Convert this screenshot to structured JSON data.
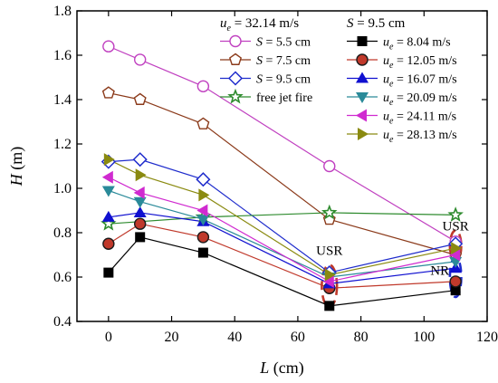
{
  "chart_data": {
    "type": "scatter",
    "xlabel": "L (cm)",
    "ylabel": "H (m)",
    "xlim": [
      -10,
      120
    ],
    "ylim": [
      0.4,
      1.8
    ],
    "xticks": [
      0,
      20,
      40,
      60,
      80,
      100,
      120
    ],
    "yticks": [
      0.4,
      0.6,
      0.8,
      1.0,
      1.2,
      1.4,
      1.6,
      1.8
    ],
    "grid": false,
    "legend_groups": [
      {
        "title": "u_e = 32.14 m/s",
        "placement": "top-center",
        "entries": [
          "S = 5.5 cm",
          "S = 7.5 cm",
          "S = 9.5 cm",
          "free jet fire"
        ]
      },
      {
        "title": "S = 9.5 cm",
        "placement": "top-right",
        "entries": [
          "u_e = 8.04 m/s",
          "u_e = 12.05 m/s",
          "u_e = 16.07 m/s",
          "u_e = 20.09 m/s",
          "u_e = 24.11 m/s",
          "u_e = 28.13 m/s"
        ]
      }
    ],
    "series": [
      {
        "name": "S = 5.5 cm",
        "marker": "circle-open",
        "color": "#c040c0",
        "x": [
          0,
          10,
          30,
          70,
          110
        ],
        "y": [
          1.64,
          1.58,
          1.46,
          1.1,
          0.76
        ]
      },
      {
        "name": "S = 7.5 cm",
        "marker": "pentagon-open",
        "color": "#8b3a1a",
        "x": [
          0,
          10,
          30,
          70,
          110
        ],
        "y": [
          1.43,
          1.4,
          1.29,
          0.86,
          0.7
        ]
      },
      {
        "name": "S = 9.5 cm",
        "marker": "diamond-open",
        "color": "#1f2ccc",
        "x": [
          0,
          10,
          30,
          70,
          110
        ],
        "y": [
          1.12,
          1.13,
          1.04,
          0.62,
          0.75
        ]
      },
      {
        "name": "free jet fire",
        "marker": "star",
        "color": "#2e8b2e",
        "x": [
          0,
          30,
          70,
          110
        ],
        "y": [
          0.84,
          0.87,
          0.89,
          0.88
        ]
      },
      {
        "name": "u_e = 8.04 m/s",
        "marker": "square",
        "color": "#000000",
        "x": [
          0,
          10,
          30,
          70,
          110
        ],
        "y": [
          0.62,
          0.78,
          0.71,
          0.47,
          0.54
        ]
      },
      {
        "name": "u_e = 12.05 m/s",
        "marker": "circle",
        "color": "#c0392b",
        "x": [
          0,
          10,
          30,
          70,
          110
        ],
        "y": [
          0.75,
          0.84,
          0.78,
          0.55,
          0.58
        ]
      },
      {
        "name": "u_e = 16.07 m/s",
        "marker": "triangle-up",
        "color": "#1010d0",
        "x": [
          0,
          10,
          30,
          70,
          110
        ],
        "y": [
          0.87,
          0.89,
          0.85,
          0.57,
          0.64
        ]
      },
      {
        "name": "u_e = 20.09 m/s",
        "marker": "triangle-down",
        "color": "#2a8a99",
        "x": [
          0,
          10,
          30,
          70,
          110
        ],
        "y": [
          0.99,
          0.94,
          0.86,
          0.6,
          0.67
        ]
      },
      {
        "name": "u_e = 24.11 m/s",
        "marker": "triangle-left",
        "color": "#d02ad0",
        "x": [
          0,
          10,
          30,
          70,
          110
        ],
        "y": [
          1.05,
          0.98,
          0.9,
          0.58,
          0.7
        ]
      },
      {
        "name": "u_e = 28.13 m/s",
        "marker": "triangle-right",
        "color": "#8a8a10",
        "x": [
          0,
          10,
          30,
          70,
          110
        ],
        "y": [
          1.13,
          1.06,
          0.97,
          0.61,
          0.73
        ]
      }
    ],
    "annotations": [
      {
        "text": "USR",
        "x": 70,
        "y": 0.7
      },
      {
        "text": "USR",
        "x": 110,
        "y": 0.81
      },
      {
        "text": "NR",
        "x": 105,
        "y": 0.61
      }
    ],
    "regions": [
      {
        "name": "usr-region-70",
        "x": 70,
        "y": 0.56,
        "rx_data": 2.4,
        "ry_data": 0.095,
        "color": "#c0392b"
      },
      {
        "name": "usr-region-110",
        "x": 110,
        "y": 0.74,
        "rx_data": 1.8,
        "ry_data": 0.07,
        "color": "#c0392b"
      },
      {
        "name": "nr-region-110",
        "x": 110,
        "y": 0.6,
        "rx_data": 1.8,
        "ry_data": 0.09,
        "color": "#1f2ccc"
      }
    ]
  }
}
